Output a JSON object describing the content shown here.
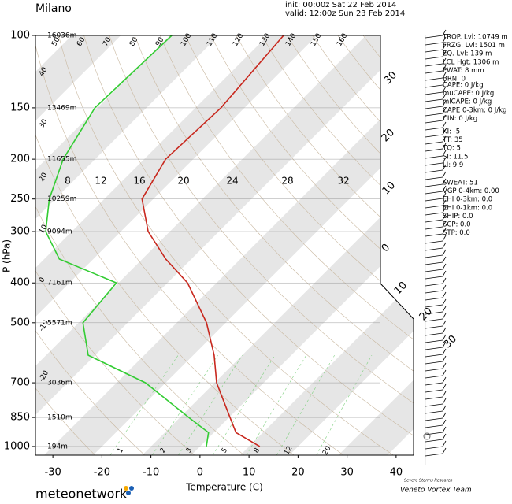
{
  "chart_data": {
    "type": "skewt",
    "title": "Milano",
    "init": "init: 00:00z Sat 22 Feb 2014",
    "valid": "valid: 12:00z Sun 23 Feb 2014",
    "x_label": "Temperature (C)",
    "y_label": "P (hPa)",
    "xlim": [
      -35,
      45
    ],
    "ylim": [
      1050,
      100
    ],
    "log_y": true,
    "xticks": [
      -30,
      -20,
      -10,
      0,
      10,
      20,
      30,
      40
    ],
    "yticks": [
      100,
      150,
      200,
      250,
      300,
      400,
      500,
      700,
      850,
      1000
    ],
    "height_labels": [
      "16036m",
      "13469m",
      "11655m",
      "10259m",
      "9094m",
      "7161m",
      "5571m",
      "3036m",
      "1510m",
      "194m"
    ],
    "y": [
      1000,
      925,
      850,
      700,
      600,
      500,
      400,
      350,
      300,
      250,
      200,
      150,
      100
    ],
    "series": [
      {
        "color": "#c8281e",
        "values": [
          12.2,
          4.5,
          0.2,
          -9.6,
          -15.7,
          -23.9,
          -35.9,
          -45.2,
          -54.4,
          -62.3,
          -65.6,
          -64.8,
          -66.8
        ]
      },
      {
        "color": "#33cc33",
        "values": [
          1.3,
          -1.1,
          -8.2,
          -24.1,
          -41.4,
          -49.1,
          -50.4,
          -66.9,
          -75.3,
          -81.2,
          -86.5,
          -90.5,
          -89.6
        ]
      }
    ],
    "mixing_ratio_labels_top": [
      8,
      12,
      16,
      20,
      24,
      28,
      32
    ],
    "mixing_ratio_labels_bottom": [
      1,
      2,
      3,
      5,
      8,
      12,
      20
    ],
    "theta_labels_top": [
      50,
      60,
      70,
      80,
      90,
      100,
      110,
      120,
      130,
      140,
      150,
      160
    ],
    "theta_labels_left": [
      40,
      30,
      20,
      10,
      0,
      -10,
      -20
    ],
    "moist_labels_right": [
      30,
      20,
      10,
      0,
      10,
      20,
      30
    ],
    "indices": [
      [
        "TROP. Lvl: 10749 m",
        "FRZG. Lvl: 1501 m",
        "EQ. Lvl: 139 m",
        "LCL Hgt: 1306 m",
        "PWAT: 8 mm",
        "BRN: 0"
      ],
      [
        "CAPE: 0 J/kg",
        "muCAPE: 0 J/kg",
        "mlCAPE: 0 J/kg",
        "CAPE 0-3km: 0 J/kg",
        "CIN: 0 J/kg"
      ],
      [
        "KI: -5",
        "TT: 35",
        "TQ: 5",
        "SI: 11.5",
        "LI: 9.9"
      ],
      [
        "SWEAT: 51",
        "VGP 0-4km: 0.00",
        "EHI 0-3km: 0.0",
        "EHI 0-1km: 0.0",
        "SHIP: 0.0",
        "SCP: 0.0",
        "STP: 0.0"
      ]
    ],
    "logo": "meteonetwork",
    "team_small": "Severe Storms Research",
    "team": "Veneto Vortex Team"
  }
}
